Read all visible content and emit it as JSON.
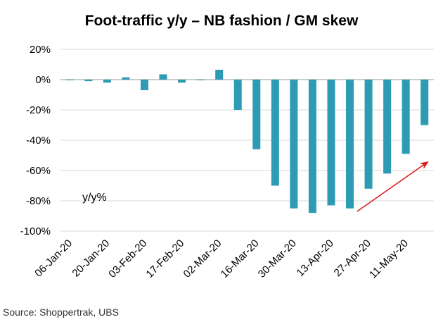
{
  "chart_data": {
    "type": "bar",
    "title": "Foot-traffic y/y – NB fashion / GM skew",
    "annotation": "y/y%",
    "source": "Source:  Shoppertrak, UBS",
    "bar_color": "#2E9BB5",
    "arrow_color": "#E02020",
    "ylim": [
      -100,
      20
    ],
    "yticks": [
      "20%",
      "0%",
      "-20%",
      "-40%",
      "-60%",
      "-80%",
      "-100%"
    ],
    "ytick_values": [
      20,
      0,
      -20,
      -40,
      -60,
      -80,
      -100
    ],
    "xtick_labels": [
      "06-Jan-20",
      "20-Jan-20",
      "03-Feb-20",
      "17-Feb-20",
      "02-Mar-20",
      "16-Mar-20",
      "30-Mar-20",
      "13-Apr-20",
      "27-Apr-20",
      "11-May-20"
    ],
    "categories": [
      "06-Jan-20",
      "13-Jan-20",
      "20-Jan-20",
      "27-Jan-20",
      "03-Feb-20",
      "10-Feb-20",
      "17-Feb-20",
      "24-Feb-20",
      "02-Mar-20",
      "09-Mar-20",
      "16-Mar-20",
      "23-Mar-20",
      "30-Mar-20",
      "06-Apr-20",
      "13-Apr-20",
      "20-Apr-20",
      "27-Apr-20",
      "04-May-20",
      "11-May-20",
      "18-May-20"
    ],
    "values": [
      0,
      -1,
      -2,
      1.5,
      -7,
      3.5,
      -2,
      0,
      6.5,
      -20,
      -46,
      -70,
      -85,
      -88,
      -83,
      -85,
      -72,
      -62,
      -49,
      -30
    ]
  }
}
